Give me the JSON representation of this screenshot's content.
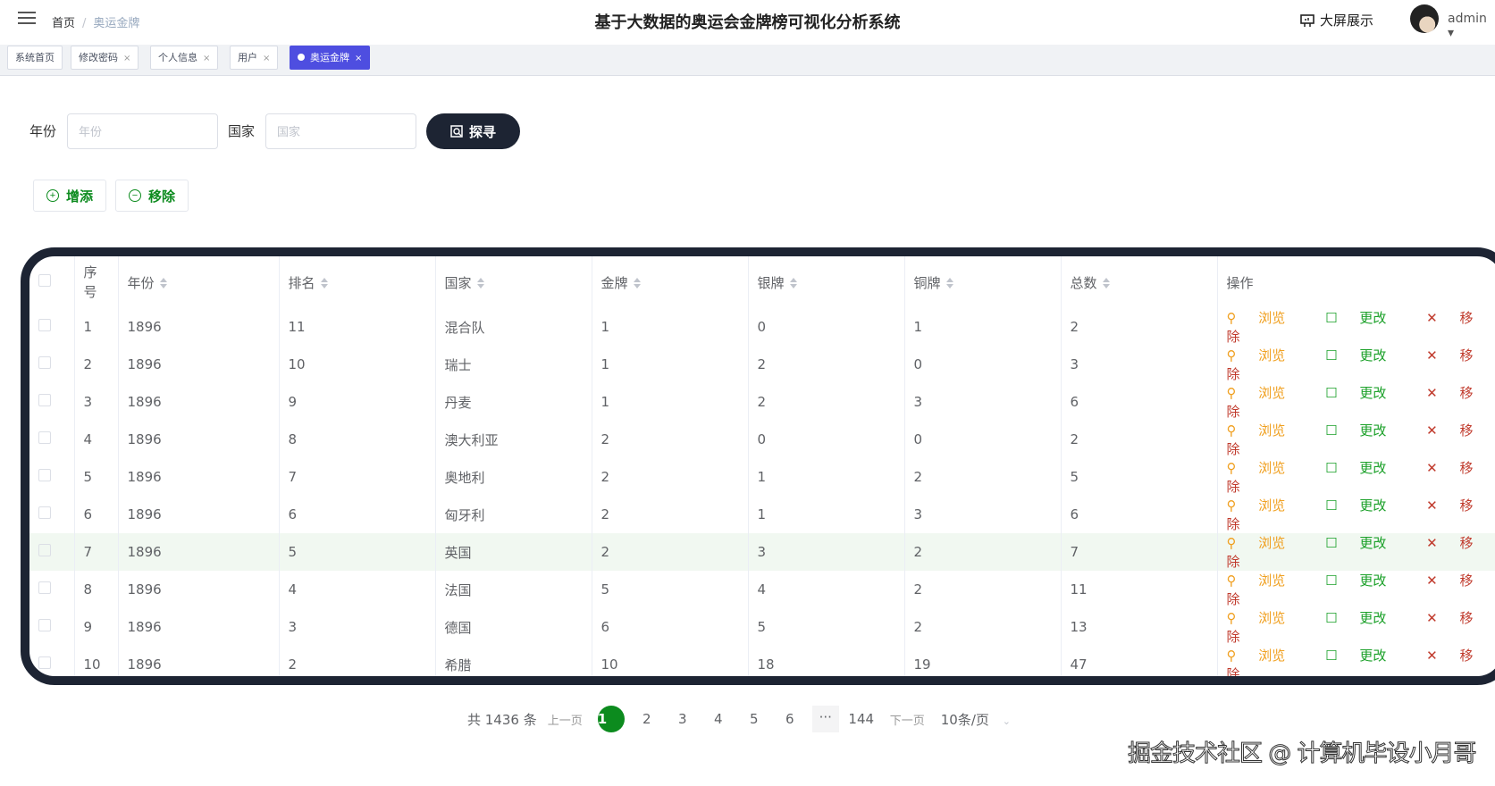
{
  "header": {
    "breadcrumb": [
      "首页",
      "奥运金牌"
    ],
    "title": "基于大数据的奥运会金牌榜可视化分析系统",
    "bigscreen": "大屏展示",
    "user": "admin"
  },
  "tabs": [
    {
      "label": "系统首页"
    },
    {
      "label": "修改密码"
    },
    {
      "label": "个人信息"
    },
    {
      "label": "用户"
    },
    {
      "label": "奥运金牌",
      "active": true
    }
  ],
  "tab_close": "×",
  "search": {
    "year_label": "年份",
    "year_placeholder": "年份",
    "country_label": "国家",
    "country_placeholder": "国家",
    "button": "探寻"
  },
  "actions": {
    "add": "增添",
    "remove": "移除"
  },
  "table": {
    "columns": [
      "序号",
      "年份",
      "排名",
      "国家",
      "金牌",
      "银牌",
      "铜牌",
      "总数",
      "操作"
    ],
    "row_actions": {
      "view": "浏览",
      "edit": "更改",
      "delete": "移除"
    },
    "rows": [
      [
        "1",
        "1896",
        "11",
        "混合队",
        "1",
        "0",
        "1",
        "2"
      ],
      [
        "2",
        "1896",
        "10",
        "瑞士",
        "1",
        "2",
        "0",
        "3"
      ],
      [
        "3",
        "1896",
        "9",
        "丹麦",
        "1",
        "2",
        "3",
        "6"
      ],
      [
        "4",
        "1896",
        "8",
        "澳大利亚",
        "2",
        "0",
        "0",
        "2"
      ],
      [
        "5",
        "1896",
        "7",
        "奥地利",
        "2",
        "1",
        "2",
        "5"
      ],
      [
        "6",
        "1896",
        "6",
        "匈牙利",
        "2",
        "1",
        "3",
        "6"
      ],
      [
        "7",
        "1896",
        "5",
        "英国",
        "2",
        "3",
        "2",
        "7"
      ],
      [
        "8",
        "1896",
        "4",
        "法国",
        "5",
        "4",
        "2",
        "11"
      ],
      [
        "9",
        "1896",
        "3",
        "德国",
        "6",
        "5",
        "2",
        "13"
      ],
      [
        "10",
        "1896",
        "2",
        "希腊",
        "10",
        "18",
        "19",
        "47"
      ]
    ]
  },
  "pagination": {
    "total": "共 1436 条",
    "prev": "上一页",
    "pages": [
      "1",
      "2",
      "3",
      "4",
      "5",
      "6"
    ],
    "ellipsis": "···",
    "last": "144",
    "next": "下一页",
    "page_size": "10条/页",
    "current": 1
  },
  "watermark": "掘金技术社区 @ 计算机毕设小月哥",
  "colors": {
    "accent": "#0c8b1e",
    "dark": "#1d2433",
    "active_tab": "#4e4ee0",
    "view": "#f0a020",
    "edit": "#1aa028",
    "delete": "#c0392b"
  }
}
